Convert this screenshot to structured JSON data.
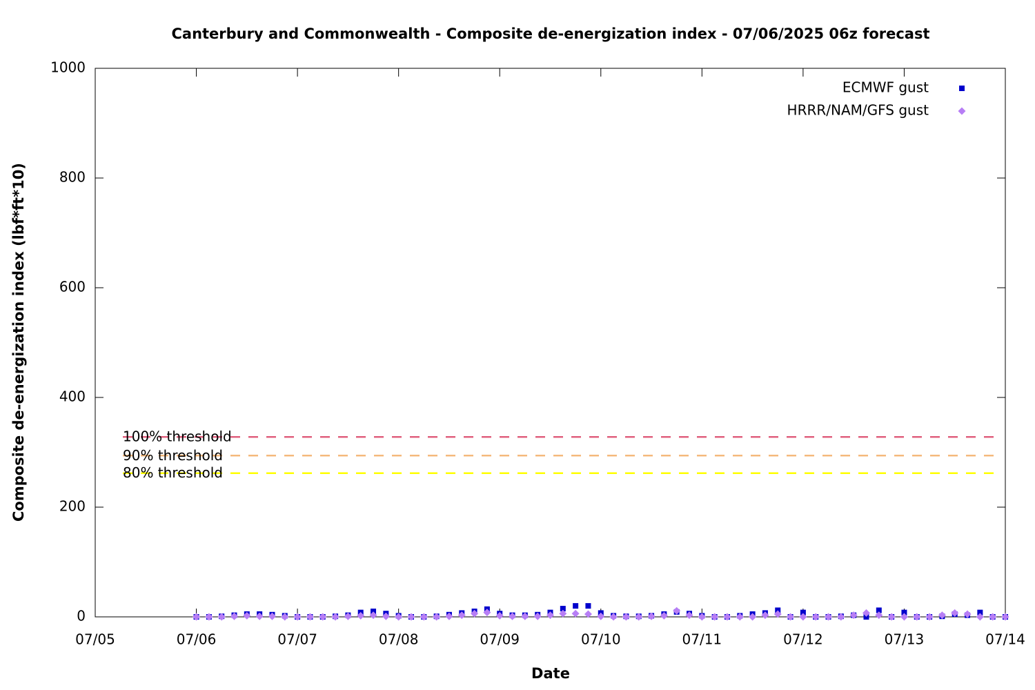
{
  "chart_data": {
    "type": "scatter",
    "title": "Canterbury and Commonwealth - Composite de-energization index - 07/06/2025 06z forecast",
    "xlabel": "Date",
    "ylabel": "Composite de-energization index (lbf*ft*10)",
    "x": [
      6,
      6.125,
      6.25,
      6.375,
      6.5,
      6.625,
      6.75,
      6.875,
      7,
      7.125,
      7.25,
      7.375,
      7.5,
      7.625,
      7.75,
      7.875,
      8,
      8.125,
      8.25,
      8.375,
      8.5,
      8.625,
      8.75,
      8.875,
      9,
      9.125,
      9.25,
      9.375,
      9.5,
      9.625,
      9.75,
      9.875,
      10,
      10.125,
      10.25,
      10.375,
      10.5,
      10.625,
      10.75,
      10.875,
      11,
      11.125,
      11.25,
      11.375,
      11.5,
      11.625,
      11.75,
      11.875,
      12,
      12.125,
      12.25,
      12.375,
      12.5,
      12.625,
      12.75,
      12.875,
      13,
      13.125,
      13.25,
      13.375,
      13.5,
      13.625,
      13.75,
      13.875,
      14
    ],
    "series": [
      {
        "name": "ECMWF gust",
        "color": "#0000cc",
        "marker": "square",
        "values": [
          0,
          0,
          1,
          3,
          5,
          5,
          4,
          2,
          0,
          0,
          0,
          1,
          3,
          8,
          10,
          6,
          2,
          0,
          0,
          1,
          4,
          7,
          10,
          14,
          6,
          3,
          3,
          4,
          8,
          15,
          20,
          20,
          7,
          2,
          1,
          1,
          2,
          5,
          9,
          6,
          2,
          0,
          0,
          2,
          5,
          7,
          12,
          0,
          8,
          0,
          0,
          1,
          3,
          0,
          12,
          0,
          8,
          0,
          0,
          1,
          5,
          3,
          8,
          0,
          0
        ]
      },
      {
        "name": "HRRR/NAM/GFS gust",
        "color": "#b77ef5",
        "marker": "diamond",
        "values": [
          0,
          0,
          0,
          1,
          2,
          1,
          1,
          0,
          0,
          0,
          0,
          0,
          1,
          2,
          3,
          1,
          0,
          0,
          0,
          0,
          1,
          3,
          6,
          8,
          2,
          1,
          1,
          1,
          3,
          6,
          6,
          5,
          1,
          0,
          0,
          0,
          1,
          2,
          11,
          3,
          0,
          0,
          0,
          0,
          0,
          3,
          5,
          0,
          0,
          0,
          0,
          0,
          3,
          7,
          3,
          0,
          0,
          0,
          0,
          3,
          7,
          5,
          0,
          0,
          0
        ]
      }
    ],
    "thresholds": [
      {
        "label": "100% threshold",
        "value": 328,
        "color": "#e0607e"
      },
      {
        "label": "90% threshold",
        "value": 294,
        "color": "#f5b97c"
      },
      {
        "label": "80% threshold",
        "value": 262,
        "color": "#ffff00"
      }
    ],
    "xlim": [
      5,
      14
    ],
    "xticks": [
      {
        "value": 5,
        "label": "07/05"
      },
      {
        "value": 6,
        "label": "07/06"
      },
      {
        "value": 7,
        "label": "07/07"
      },
      {
        "value": 8,
        "label": "07/08"
      },
      {
        "value": 9,
        "label": "07/09"
      },
      {
        "value": 10,
        "label": "07/10"
      },
      {
        "value": 11,
        "label": "07/11"
      },
      {
        "value": 12,
        "label": "07/12"
      },
      {
        "value": 13,
        "label": "07/13"
      },
      {
        "value": 14,
        "label": "07/14"
      }
    ],
    "ylim": [
      0,
      1000
    ],
    "yticks": [
      0,
      200,
      400,
      600,
      800,
      1000
    ],
    "legend": "upper right"
  }
}
